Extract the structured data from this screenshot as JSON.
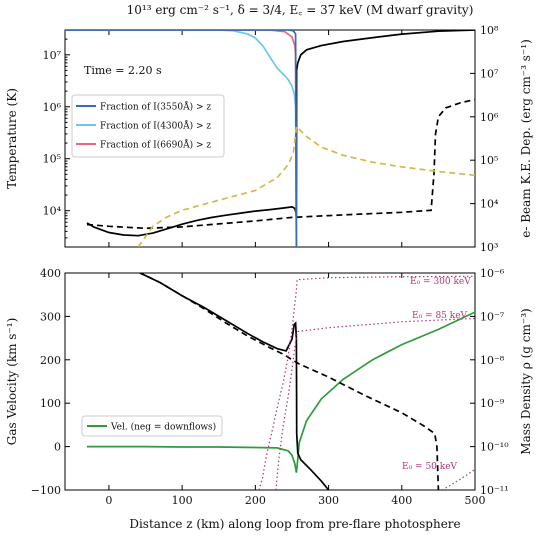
{
  "figure": {
    "title": "10¹³ erg cm⁻² s⁻¹, δ = 3/4, E꜀ = 37 keV (M dwarf gravity)",
    "xlabel": "Distance z (km) along loop from pre-flare photosphere",
    "colors": {
      "black": "#000000",
      "blue": "#2e6fb6",
      "cyan": "#6cc7ea",
      "pink": "#e8677e",
      "gold": "#d6b84a",
      "green": "#2e9c3b",
      "magenta": "#b8327a"
    }
  },
  "chart_data": [
    {
      "type": "line",
      "panel": "top",
      "annotation": "Time = 2.20 s",
      "xlim": [
        -60,
        500
      ],
      "ylabel_left": "Temperature (K)",
      "ylabel_right": "e- Beam K.E. Dep. (erg cm⁻³ s⁻¹)",
      "ylim_left": [
        2000,
        30000000
      ],
      "ylim_right": [
        1000,
        100000000
      ],
      "yscale_left": "log",
      "yscale_right": "log",
      "x_ticks": [
        "0",
        "100",
        "200",
        "300",
        "400",
        "500"
      ],
      "y_ticks_left": [
        "10⁴",
        "10⁵",
        "10⁶",
        "10⁷"
      ],
      "y_ticks_right": [
        "10³",
        "10⁴",
        "10⁵",
        "10⁶",
        "10⁷",
        "10⁸"
      ],
      "legend": [
        "Fraction of I(3550Å) > z",
        "Fraction of I(4300Å) > z",
        "Fraction of I(6690Å) > z"
      ],
      "series": [
        {
          "name": "temperature",
          "axis": "left",
          "color": "black",
          "style": "solid",
          "points": [
            [
              -30,
              5800
            ],
            [
              -20,
              4800
            ],
            [
              0,
              3800
            ],
            [
              20,
              3400
            ],
            [
              40,
              3300
            ],
            [
              60,
              3700
            ],
            [
              80,
              4500
            ],
            [
              100,
              5500
            ],
            [
              120,
              6500
            ],
            [
              140,
              7400
            ],
            [
              160,
              8200
            ],
            [
              180,
              9000
            ],
            [
              200,
              9800
            ],
            [
              220,
              10500
            ],
            [
              240,
              11300
            ],
            [
              250,
              11800
            ],
            [
              252,
              11500
            ],
            [
              254,
              11000
            ],
            [
              255.5,
              9000
            ],
            [
              256,
              7000
            ],
            [
              256.3,
              5000000
            ],
            [
              258,
              7000000
            ],
            [
              262,
              10000000
            ],
            [
              270,
              12500000
            ],
            [
              290,
              15000000
            ],
            [
              320,
              18000000
            ],
            [
              350,
              20500000
            ],
            [
              400,
              25000000
            ],
            [
              450,
              28500000
            ],
            [
              500,
              30000000
            ]
          ]
        },
        {
          "name": "beam_heating",
          "axis": "right",
          "color": "black",
          "style": "dashed",
          "points": [
            [
              -30,
              3300
            ],
            [
              0,
              3000
            ],
            [
              50,
              2700
            ],
            [
              100,
              2900
            ],
            [
              150,
              3400
            ],
            [
              200,
              4000
            ],
            [
              250,
              4800
            ],
            [
              300,
              5300
            ],
            [
              350,
              5800
            ],
            [
              400,
              6300
            ],
            [
              440,
              7000
            ],
            [
              444,
              50000
            ],
            [
              446,
              400000
            ],
            [
              450,
              1000000
            ],
            [
              460,
              1600000
            ],
            [
              480,
              2100000
            ],
            [
              500,
              2500000
            ]
          ]
        },
        {
          "name": "Fraction of I(4300Å) > z",
          "axis": "left",
          "color": "cyan",
          "style": "solid",
          "points": [
            [
              -60,
              30000000
            ],
            [
              150,
              30000000
            ],
            [
              170,
              29000000
            ],
            [
              190,
              25000000
            ],
            [
              200,
              21000000
            ],
            [
              210,
              15000000
            ],
            [
              220,
              9000000
            ],
            [
              230,
              5500000
            ],
            [
              240,
              4000000
            ],
            [
              245,
              3300000
            ],
            [
              250,
              2500000
            ],
            [
              253,
              1800000
            ],
            [
              255,
              1000000
            ],
            [
              256,
              2000
            ]
          ]
        },
        {
          "name": "Fraction of I(6690Å) > z",
          "axis": "left",
          "color": "pink",
          "style": "solid",
          "points": [
            [
              -60,
              30000000
            ],
            [
              220,
              30000000
            ],
            [
              240,
              28000000
            ],
            [
              250,
              22000000
            ],
            [
              254,
              15000000
            ],
            [
              255,
              10000000
            ],
            [
              256,
              2000
            ]
          ]
        },
        {
          "name": "Fraction of I(3550Å) > z",
          "axis": "left",
          "color": "blue",
          "style": "solid",
          "points": [
            [
              -60,
              30000000
            ],
            [
              245,
              30000000
            ],
            [
              252,
              29000000
            ],
            [
              255,
              25000000
            ],
            [
              256,
              2000
            ]
          ]
        },
        {
          "name": "e- beam deposition",
          "axis": "right",
          "color": "gold",
          "style": "dashed",
          "points": [
            [
              40,
              1000
            ],
            [
              60,
              3000
            ],
            [
              80,
              5000
            ],
            [
              100,
              7000
            ],
            [
              150,
              12000
            ],
            [
              200,
              20000
            ],
            [
              230,
              40000
            ],
            [
              245,
              80000
            ],
            [
              252,
              150000
            ],
            [
              256,
              600000
            ],
            [
              270,
              350000
            ],
            [
              290,
              200000
            ],
            [
              320,
              130000
            ],
            [
              360,
              90000
            ],
            [
              400,
              70000
            ],
            [
              450,
              55000
            ],
            [
              500,
              45000
            ]
          ]
        }
      ]
    },
    {
      "type": "line",
      "panel": "bottom",
      "xlim": [
        -60,
        500
      ],
      "ylabel_left": "Gas Velocity (km s⁻¹)",
      "ylabel_right": "Mass Density ρ (g cm⁻³)",
      "ylim_left": [
        -100,
        400
      ],
      "ylim_right": [
        1e-11,
        1e-06
      ],
      "yscale_right": "log",
      "x_ticks": [
        "0",
        "100",
        "200",
        "300",
        "400",
        "500"
      ],
      "y_ticks_left": [
        "−100",
        "0",
        "100",
        "200",
        "300",
        "400"
      ],
      "y_ticks_right": [
        "10⁻¹¹",
        "10⁻¹⁰",
        "10⁻⁹",
        "10⁻⁸",
        "10⁻⁷",
        "10⁻⁶"
      ],
      "legend": [
        "Vel. (neg = downflows)"
      ],
      "annotations": [
        "E₀ = 300 keV",
        "E₀ = 85 keV",
        "E₀ = 50 keV"
      ],
      "series": [
        {
          "name": "Vel. (neg = downflows)",
          "axis": "left",
          "color": "green",
          "style": "solid",
          "points": [
            [
              -30,
              0
            ],
            [
              50,
              0
            ],
            [
              100,
              -1
            ],
            [
              150,
              -1
            ],
            [
              200,
              -2
            ],
            [
              230,
              -3
            ],
            [
              245,
              -10
            ],
            [
              250,
              -20
            ],
            [
              254,
              -40
            ],
            [
              256,
              -60
            ],
            [
              257,
              -45
            ],
            [
              260,
              10
            ],
            [
              270,
              60
            ],
            [
              290,
              110
            ],
            [
              320,
              155
            ],
            [
              360,
              200
            ],
            [
              400,
              235
            ],
            [
              450,
              270
            ],
            [
              500,
              310
            ]
          ]
        },
        {
          "name": "density",
          "axis": "right",
          "color": "black",
          "style": "solid",
          "points": [
            [
              40,
              1.05e-06
            ],
            [
              70,
              6e-07
            ],
            [
              100,
              3e-07
            ],
            [
              130,
              1.6e-07
            ],
            [
              160,
              8e-08
            ],
            [
              190,
              4e-08
            ],
            [
              210,
              2.6e-08
            ],
            [
              230,
              1.8e-08
            ],
            [
              242,
              1.6e-08
            ],
            [
              250,
              3e-08
            ],
            [
              253,
              6.5e-08
            ],
            [
              255,
              7e-08
            ],
            [
              256,
              3e-08
            ],
            [
              256.5,
              2e-10
            ],
            [
              258,
              7e-11
            ],
            [
              262,
              5e-11
            ],
            [
              275,
              3e-11
            ],
            [
              290,
              1.6e-11
            ],
            [
              300,
              1e-11
            ]
          ]
        },
        {
          "name": "initial density",
          "axis": "right",
          "color": "black",
          "style": "dashed",
          "points": [
            [
              40,
              1.05e-06
            ],
            [
              70,
              6e-07
            ],
            [
              100,
              3e-07
            ],
            [
              130,
              1.5e-07
            ],
            [
              160,
              7e-08
            ],
            [
              190,
              3.5e-08
            ],
            [
              220,
              1.9e-08
            ],
            [
              240,
              1.3e-08
            ],
            [
              250,
              1e-08
            ],
            [
              260,
              8e-09
            ],
            [
              300,
              4e-09
            ],
            [
              350,
              1.5e-09
            ],
            [
              400,
              6e-10
            ],
            [
              430,
              3e-10
            ],
            [
              445,
              2e-10
            ],
            [
              448,
              1e-10
            ],
            [
              450,
              1e-11
            ]
          ]
        },
        {
          "name": "E₀ = 300 keV",
          "axis": "right",
          "color": "magenta",
          "style": "dotted",
          "points": [
            [
              205,
              1e-11
            ],
            [
              210,
              2e-11
            ],
            [
              215,
              6e-11
            ],
            [
              222,
              2e-10
            ],
            [
              230,
              8e-10
            ],
            [
              238,
              3e-09
            ],
            [
              244,
              1e-08
            ],
            [
              250,
              5e-08
            ],
            [
              254,
              2e-07
            ],
            [
              256,
              4e-07
            ],
            [
              257,
              7e-07
            ],
            [
              300,
              7.8e-07
            ],
            [
              400,
              8.2e-07
            ],
            [
              500,
              8.4e-07
            ]
          ]
        },
        {
          "name": "E₀ = 85 keV",
          "axis": "right",
          "color": "magenta",
          "style": "dotted",
          "points": [
            [
              228,
              1e-11
            ],
            [
              232,
              5e-11
            ],
            [
              238,
              3e-10
            ],
            [
              245,
              1.5e-09
            ],
            [
              250,
              6e-09
            ],
            [
              254,
              2e-08
            ],
            [
              256,
              3.5e-08
            ],
            [
              258,
              4.5e-08
            ],
            [
              300,
              5.5e-08
            ],
            [
              400,
              7.5e-08
            ],
            [
              500,
              9e-08
            ]
          ]
        },
        {
          "name": "E₀ = 50 keV",
          "axis": "right",
          "color": "magenta",
          "style": "dotted",
          "points": [
            [
              455,
              1e-11
            ],
            [
              470,
              1.4e-11
            ],
            [
              485,
              2e-11
            ],
            [
              500,
              3e-11
            ]
          ]
        }
      ]
    }
  ]
}
